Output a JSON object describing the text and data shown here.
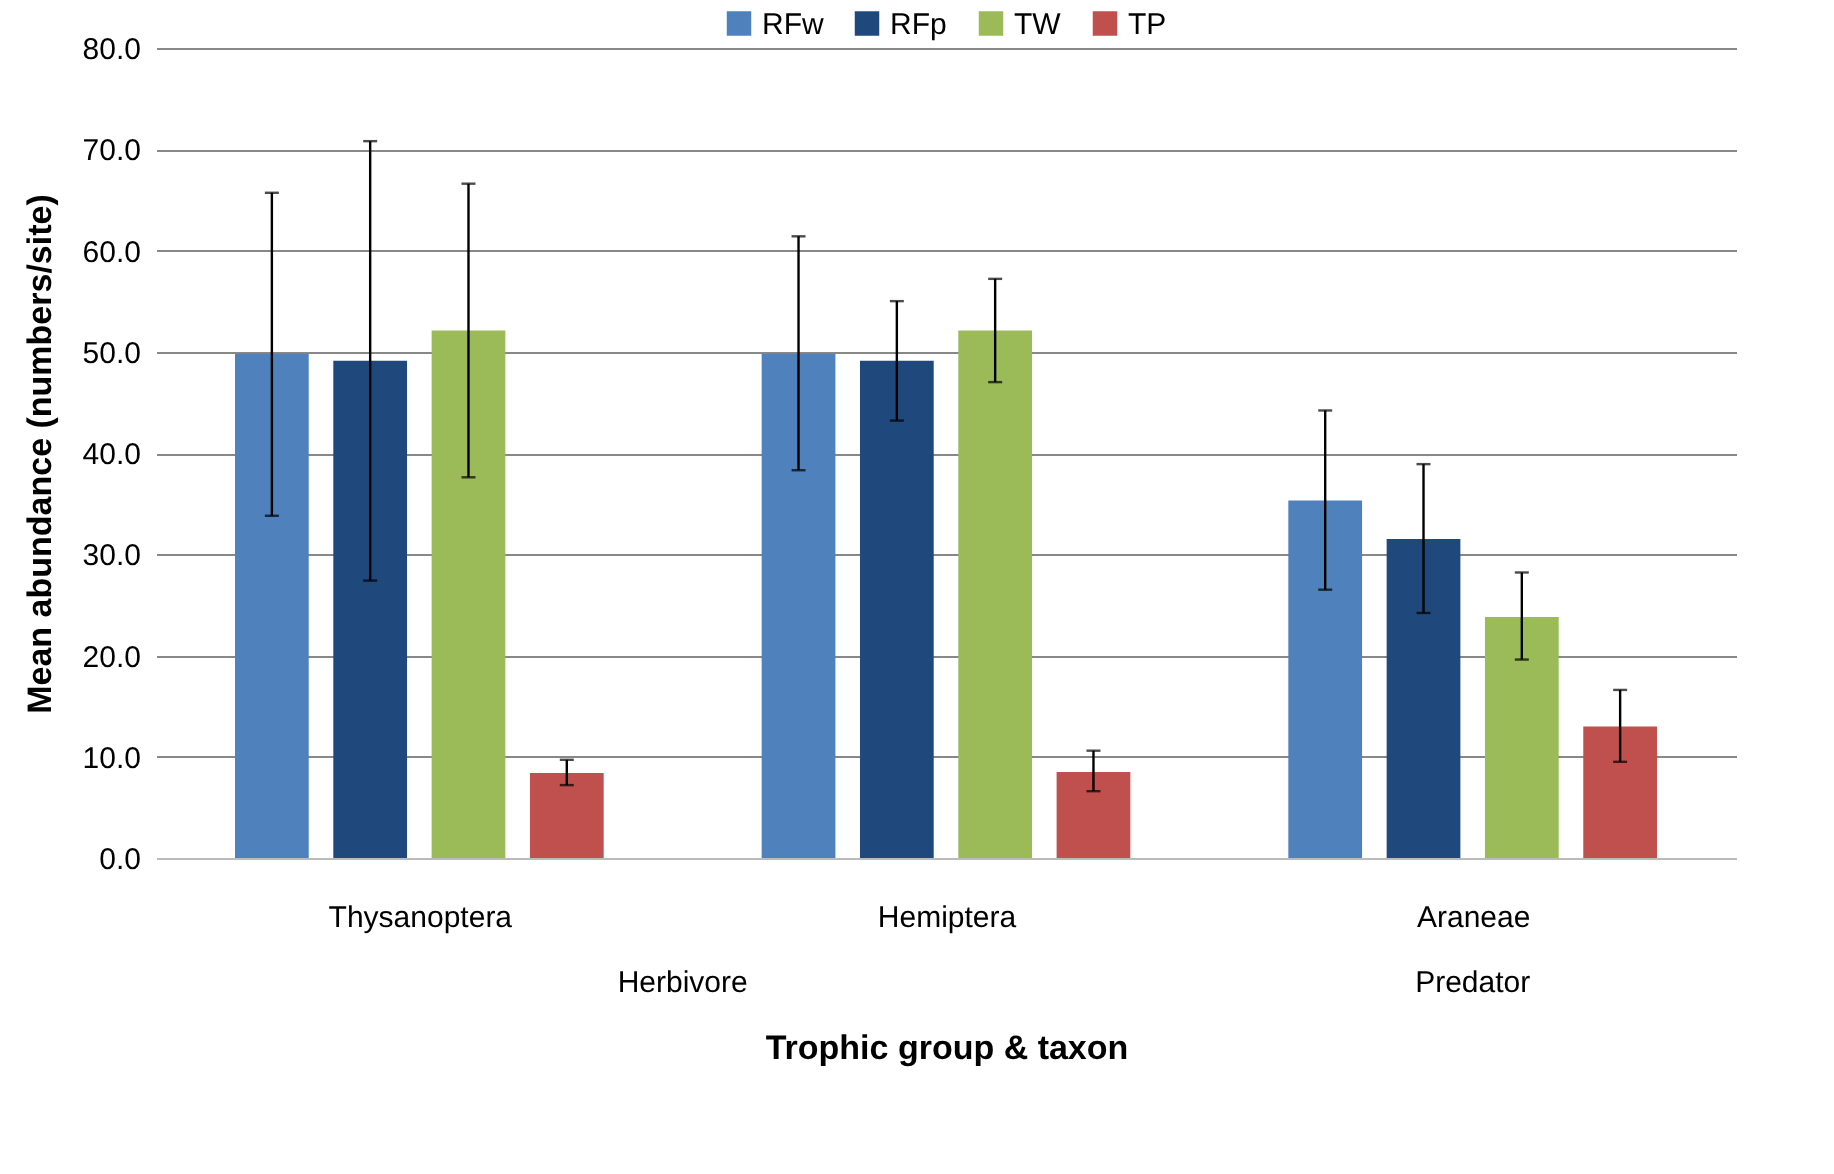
{
  "chart_data": {
    "type": "bar",
    "xlabel": "Trophic group & taxon",
    "ylabel": "Mean abundance (numbers/site)",
    "categories": [
      "Thysanoptera",
      "Hemiptera",
      "Araneae"
    ],
    "annotations": [
      "Herbivore",
      "Predator"
    ],
    "series": [
      {
        "name": "RFw",
        "color": "#4f81bd",
        "values": [
          49.8,
          49.8,
          35.3
        ],
        "errors": [
          [
            33.8,
            65.7
          ],
          [
            38.3,
            61.4
          ],
          [
            26.5,
            44.2
          ]
        ]
      },
      {
        "name": "RFp",
        "color": "#1f497d",
        "values": [
          49.1,
          49.1,
          31.5
        ],
        "errors": [
          [
            27.4,
            70.8
          ],
          [
            43.2,
            55.0
          ],
          [
            24.2,
            38.9
          ]
        ]
      },
      {
        "name": "TW",
        "color": "#9bbb59",
        "values": [
          52.1,
          52.1,
          23.8
        ],
        "errors": [
          [
            37.6,
            66.6
          ],
          [
            47.0,
            57.2
          ],
          [
            19.6,
            28.2
          ]
        ]
      },
      {
        "name": "TP",
        "color": "#c0504d",
        "values": [
          8.4,
          8.5,
          13.0
        ],
        "errors": [
          [
            7.2,
            9.7
          ],
          [
            6.6,
            10.6
          ],
          [
            9.5,
            16.6
          ]
        ]
      }
    ],
    "ylim": [
      0,
      80
    ],
    "yticks": [
      {
        "value": 0,
        "label": "0.0"
      },
      {
        "value": 10,
        "label": "10.0"
      },
      {
        "value": 20,
        "label": "20.0"
      },
      {
        "value": 30,
        "label": "30.0"
      },
      {
        "value": 40,
        "label": "40.0"
      },
      {
        "value": 50,
        "label": "50.0"
      },
      {
        "value": 60,
        "label": "60.0"
      },
      {
        "value": 70,
        "label": "70.0"
      },
      {
        "value": 80,
        "label": "80.0"
      }
    ],
    "grid": "y",
    "legend": "top"
  }
}
